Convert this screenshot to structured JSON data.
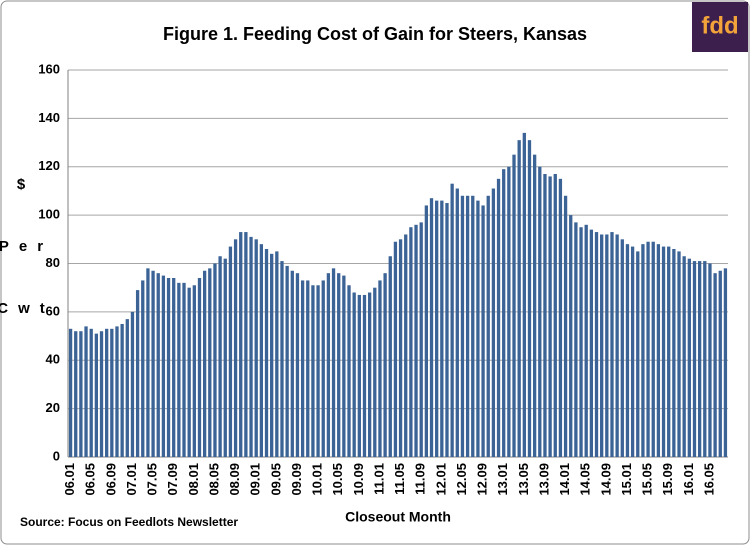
{
  "chart_data": {
    "type": "bar",
    "title": "Figure 1.  Feeding Cost of Gain for Steers, Kansas",
    "y_label": "$ Per Cwt",
    "x_label": "Closeout Month",
    "source": "Source:  Focus on Feedlots Newsletter",
    "logo": "fdd",
    "color": "#3b6396",
    "grid": true,
    "ylim": [
      0,
      160
    ],
    "yticks": [
      0,
      20,
      40,
      60,
      80,
      100,
      120,
      140,
      160
    ],
    "categories": [
      "06.01",
      null,
      null,
      null,
      "06.05",
      null,
      null,
      null,
      "06.09",
      null,
      null,
      null,
      "07.01",
      null,
      null,
      null,
      "07.05",
      null,
      null,
      null,
      "07.09",
      null,
      null,
      null,
      "08.01",
      null,
      null,
      null,
      "08.05",
      null,
      null,
      null,
      "08.09",
      null,
      null,
      null,
      "09.01",
      null,
      null,
      null,
      "09.05",
      null,
      null,
      null,
      "09.09",
      null,
      null,
      null,
      "10.01",
      null,
      null,
      null,
      "10.05",
      null,
      null,
      null,
      "10.09",
      null,
      null,
      null,
      "11.01",
      null,
      null,
      null,
      "11.05",
      null,
      null,
      null,
      "11.09",
      null,
      null,
      null,
      "12.01",
      null,
      null,
      null,
      "12.05",
      null,
      null,
      null,
      "12.09",
      null,
      null,
      null,
      "13.01",
      null,
      null,
      null,
      "13.05",
      null,
      null,
      null,
      "13.09",
      null,
      null,
      null,
      "14.01",
      null,
      null,
      null,
      "14.05",
      null,
      null,
      null,
      "14.09",
      null,
      null,
      null,
      "15.01",
      null,
      null,
      null,
      "15.05",
      null,
      null,
      null,
      "15.09",
      null,
      null,
      null,
      "16.01",
      null,
      null,
      null,
      "16.05",
      null,
      null,
      null
    ],
    "values": [
      53,
      52,
      52,
      54,
      53,
      51,
      52,
      53,
      53,
      54,
      55,
      57,
      60,
      69,
      73,
      78,
      77,
      76,
      75,
      74,
      74,
      72,
      72,
      70,
      71,
      74,
      77,
      78,
      80,
      83,
      82,
      87,
      90,
      93,
      93,
      91,
      90,
      88,
      86,
      84,
      85,
      81,
      79,
      77,
      76,
      73,
      73,
      71,
      71,
      73,
      76,
      78,
      76,
      75,
      71,
      68,
      67,
      67,
      68,
      70,
      73,
      76,
      83,
      89,
      90,
      92,
      95,
      96,
      97,
      104,
      107,
      106,
      106,
      105,
      113,
      111,
      108,
      108,
      108,
      106,
      104,
      108,
      111,
      115,
      119,
      120,
      125,
      131,
      134,
      131,
      125,
      120,
      117,
      116,
      117,
      115,
      108,
      100,
      97,
      95,
      96,
      94,
      93,
      92,
      92,
      93,
      92,
      90,
      88,
      87,
      85,
      88,
      89,
      89,
      88,
      87,
      87,
      86,
      85,
      83,
      82,
      81,
      81,
      81,
      80,
      76,
      77,
      78
    ]
  }
}
